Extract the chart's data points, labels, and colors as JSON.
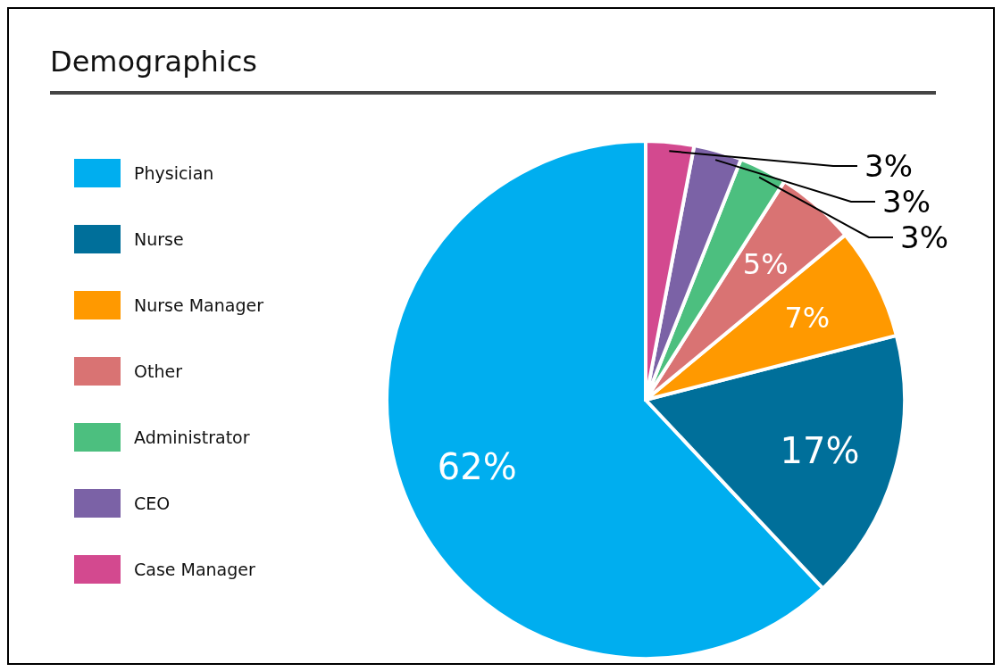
{
  "chart_data": {
    "type": "pie",
    "title": "Demographics",
    "categories": [
      "Physician",
      "Nurse",
      "Nurse Manager",
      "Other",
      "Administrator",
      "CEO",
      "Case Manager"
    ],
    "values": [
      62,
      17,
      7,
      5,
      3,
      3,
      3
    ],
    "value_labels": [
      "62%",
      "17%",
      "7%",
      "5%",
      "3%",
      "3%",
      "3%"
    ],
    "colors": [
      "#00aeef",
      "#006f9a",
      "#ff9900",
      "#d97373",
      "#4cbf7f",
      "#7b62a6",
      "#d3498f"
    ],
    "legend": "left"
  }
}
